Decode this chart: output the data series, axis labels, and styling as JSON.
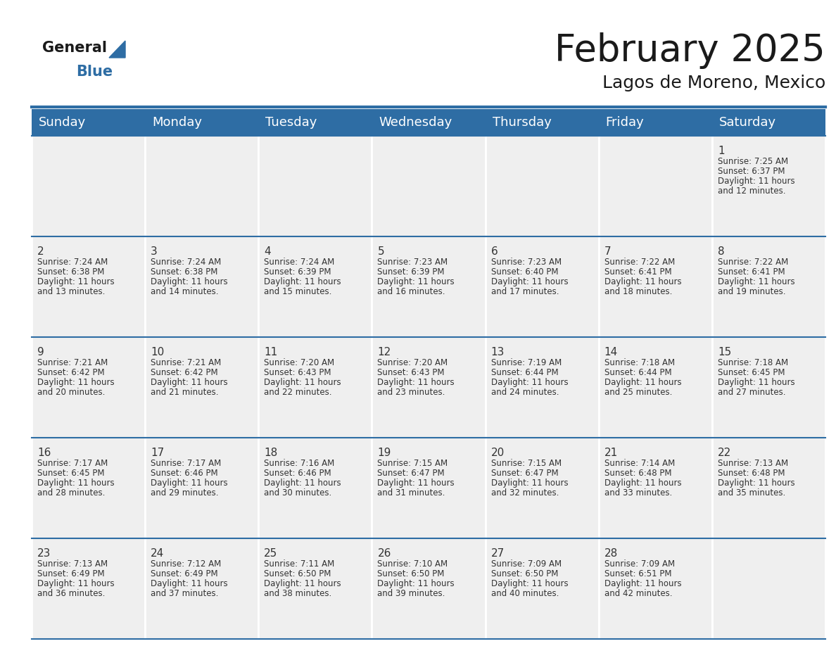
{
  "title": "February 2025",
  "subtitle": "Lagos de Moreno, Mexico",
  "header_bg": "#2E6DA4",
  "header_text_color": "#FFFFFF",
  "cell_bg": "#EFEFEF",
  "border_color": "#2E6DA4",
  "text_color": "#333333",
  "day_headers": [
    "Sunday",
    "Monday",
    "Tuesday",
    "Wednesday",
    "Thursday",
    "Friday",
    "Saturday"
  ],
  "title_fontsize": 38,
  "subtitle_fontsize": 18,
  "day_header_fontsize": 13,
  "day_num_fontsize": 11,
  "cell_text_fontsize": 8.5,
  "calendar_data": [
    [
      null,
      null,
      null,
      null,
      null,
      null,
      {
        "day": 1,
        "sunrise": "7:25 AM",
        "sunset": "6:37 PM",
        "daylight": "11 hours",
        "daylight2": "and 12 minutes."
      }
    ],
    [
      {
        "day": 2,
        "sunrise": "7:24 AM",
        "sunset": "6:38 PM",
        "daylight": "11 hours",
        "daylight2": "and 13 minutes."
      },
      {
        "day": 3,
        "sunrise": "7:24 AM",
        "sunset": "6:38 PM",
        "daylight": "11 hours",
        "daylight2": "and 14 minutes."
      },
      {
        "day": 4,
        "sunrise": "7:24 AM",
        "sunset": "6:39 PM",
        "daylight": "11 hours",
        "daylight2": "and 15 minutes."
      },
      {
        "day": 5,
        "sunrise": "7:23 AM",
        "sunset": "6:39 PM",
        "daylight": "11 hours",
        "daylight2": "and 16 minutes."
      },
      {
        "day": 6,
        "sunrise": "7:23 AM",
        "sunset": "6:40 PM",
        "daylight": "11 hours",
        "daylight2": "and 17 minutes."
      },
      {
        "day": 7,
        "sunrise": "7:22 AM",
        "sunset": "6:41 PM",
        "daylight": "11 hours",
        "daylight2": "and 18 minutes."
      },
      {
        "day": 8,
        "sunrise": "7:22 AM",
        "sunset": "6:41 PM",
        "daylight": "11 hours",
        "daylight2": "and 19 minutes."
      }
    ],
    [
      {
        "day": 9,
        "sunrise": "7:21 AM",
        "sunset": "6:42 PM",
        "daylight": "11 hours",
        "daylight2": "and 20 minutes."
      },
      {
        "day": 10,
        "sunrise": "7:21 AM",
        "sunset": "6:42 PM",
        "daylight": "11 hours",
        "daylight2": "and 21 minutes."
      },
      {
        "day": 11,
        "sunrise": "7:20 AM",
        "sunset": "6:43 PM",
        "daylight": "11 hours",
        "daylight2": "and 22 minutes."
      },
      {
        "day": 12,
        "sunrise": "7:20 AM",
        "sunset": "6:43 PM",
        "daylight": "11 hours",
        "daylight2": "and 23 minutes."
      },
      {
        "day": 13,
        "sunrise": "7:19 AM",
        "sunset": "6:44 PM",
        "daylight": "11 hours",
        "daylight2": "and 24 minutes."
      },
      {
        "day": 14,
        "sunrise": "7:18 AM",
        "sunset": "6:44 PM",
        "daylight": "11 hours",
        "daylight2": "and 25 minutes."
      },
      {
        "day": 15,
        "sunrise": "7:18 AM",
        "sunset": "6:45 PM",
        "daylight": "11 hours",
        "daylight2": "and 27 minutes."
      }
    ],
    [
      {
        "day": 16,
        "sunrise": "7:17 AM",
        "sunset": "6:45 PM",
        "daylight": "11 hours",
        "daylight2": "and 28 minutes."
      },
      {
        "day": 17,
        "sunrise": "7:17 AM",
        "sunset": "6:46 PM",
        "daylight": "11 hours",
        "daylight2": "and 29 minutes."
      },
      {
        "day": 18,
        "sunrise": "7:16 AM",
        "sunset": "6:46 PM",
        "daylight": "11 hours",
        "daylight2": "and 30 minutes."
      },
      {
        "day": 19,
        "sunrise": "7:15 AM",
        "sunset": "6:47 PM",
        "daylight": "11 hours",
        "daylight2": "and 31 minutes."
      },
      {
        "day": 20,
        "sunrise": "7:15 AM",
        "sunset": "6:47 PM",
        "daylight": "11 hours",
        "daylight2": "and 32 minutes."
      },
      {
        "day": 21,
        "sunrise": "7:14 AM",
        "sunset": "6:48 PM",
        "daylight": "11 hours",
        "daylight2": "and 33 minutes."
      },
      {
        "day": 22,
        "sunrise": "7:13 AM",
        "sunset": "6:48 PM",
        "daylight": "11 hours",
        "daylight2": "and 35 minutes."
      }
    ],
    [
      {
        "day": 23,
        "sunrise": "7:13 AM",
        "sunset": "6:49 PM",
        "daylight": "11 hours",
        "daylight2": "and 36 minutes."
      },
      {
        "day": 24,
        "sunrise": "7:12 AM",
        "sunset": "6:49 PM",
        "daylight": "11 hours",
        "daylight2": "and 37 minutes."
      },
      {
        "day": 25,
        "sunrise": "7:11 AM",
        "sunset": "6:50 PM",
        "daylight": "11 hours",
        "daylight2": "and 38 minutes."
      },
      {
        "day": 26,
        "sunrise": "7:10 AM",
        "sunset": "6:50 PM",
        "daylight": "11 hours",
        "daylight2": "and 39 minutes."
      },
      {
        "day": 27,
        "sunrise": "7:09 AM",
        "sunset": "6:50 PM",
        "daylight": "11 hours",
        "daylight2": "and 40 minutes."
      },
      {
        "day": 28,
        "sunrise": "7:09 AM",
        "sunset": "6:51 PM",
        "daylight": "11 hours",
        "daylight2": "and 42 minutes."
      },
      null
    ]
  ]
}
